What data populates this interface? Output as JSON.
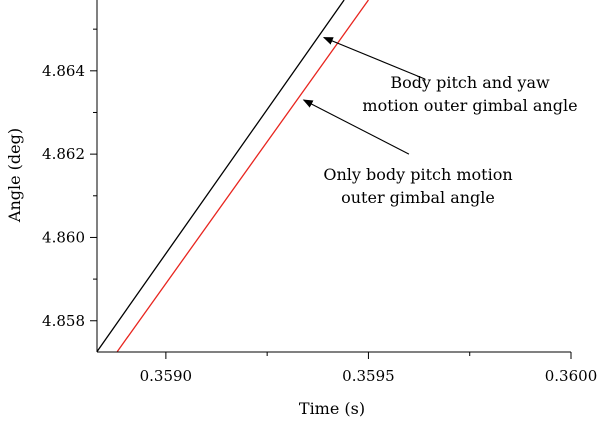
{
  "chart_data": {
    "type": "line",
    "title": "",
    "xlabel": "Time (s)",
    "ylabel": "Angle (deg)",
    "xlim": [
      0.35883,
      0.36
    ],
    "ylim": [
      4.85725,
      4.8657
    ],
    "x_ticks": [
      {
        "value": 0.359,
        "label": "0.3590"
      },
      {
        "value": 0.3595,
        "label": "0.3595"
      },
      {
        "value": 0.36,
        "label": "0.3600"
      }
    ],
    "y_ticks": [
      {
        "value": 4.858,
        "label": "4.858"
      },
      {
        "value": 4.86,
        "label": "4.860"
      },
      {
        "value": 4.862,
        "label": "4.862"
      },
      {
        "value": 4.864,
        "label": "4.864"
      }
    ],
    "grid": false,
    "series": [
      {
        "key": "pitch_yaw",
        "color": "#000000",
        "points": [
          [
            0.35883,
            4.85726
          ],
          [
            0.35944,
            4.8657
          ]
        ]
      },
      {
        "key": "pitch_only",
        "color": "#e8251f",
        "points": [
          [
            0.35888,
            4.85726
          ],
          [
            0.3595,
            4.8657
          ]
        ]
      }
    ],
    "annotations": [
      {
        "key": "pitch_yaw",
        "lines": [
          "Body pitch and yaw",
          "motion outer gimbal angle"
        ],
        "arrow_to": [
          0.35939,
          4.8648
        ],
        "arrow_from": [
          0.35964,
          4.8638
        ]
      },
      {
        "key": "pitch_only",
        "lines": [
          "Only body pitch motion",
          "outer gimbal angle"
        ],
        "arrow_to": [
          0.35934,
          4.8633
        ],
        "arrow_from": [
          0.3596,
          4.862
        ]
      }
    ]
  }
}
